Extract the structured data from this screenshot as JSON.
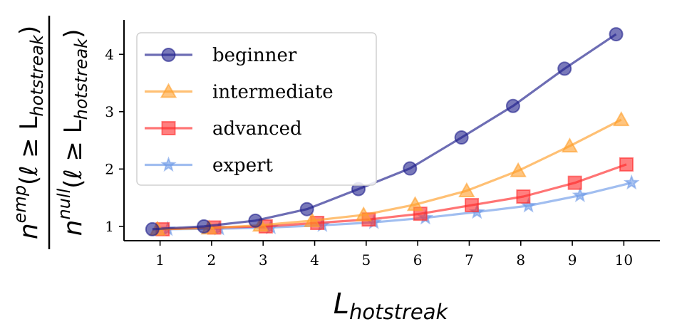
{
  "chart_data": {
    "type": "line",
    "x": [
      1,
      2,
      3,
      4,
      5,
      6,
      7,
      8,
      9,
      10
    ],
    "xlim": [
      0.3,
      10.7
    ],
    "ylim": [
      0.75,
      4.55
    ],
    "xticks": [
      1,
      2,
      3,
      4,
      5,
      6,
      7,
      8,
      9,
      10
    ],
    "yticks": [
      1,
      2,
      3,
      4
    ],
    "xlabel": {
      "base": "L",
      "sub": "hotstreak"
    },
    "ylabel": {
      "numerator": {
        "base": "n",
        "sup": "emp",
        "arg": "(ℓ ≥ L",
        "sub": "hotstreak",
        "close": ")"
      },
      "denominator": {
        "base": "n",
        "sup": "null",
        "arg": "(ℓ ≥ L",
        "sub": "hotstreak",
        "close": ")"
      }
    },
    "grid": false,
    "legend_position": "top-left",
    "series": [
      {
        "name": "beginner",
        "color": "#1f1f8c",
        "marker": "circle",
        "x_offset": -0.15,
        "values": [
          0.95,
          1.0,
          1.1,
          1.3,
          1.65,
          2.01,
          2.55,
          3.1,
          3.75,
          4.35
        ]
      },
      {
        "name": "intermediate",
        "color": "#ff9e2a",
        "marker": "triangle",
        "x_offset": -0.05,
        "values": [
          0.95,
          0.97,
          1.02,
          1.1,
          1.2,
          1.38,
          1.62,
          1.97,
          2.4,
          2.86
        ]
      },
      {
        "name": "advanced",
        "color": "#ff2a2a",
        "marker": "square",
        "x_offset": 0.05,
        "values": [
          0.95,
          0.98,
          1.0,
          1.06,
          1.12,
          1.22,
          1.37,
          1.52,
          1.76,
          2.08
        ]
      },
      {
        "name": "expert",
        "color": "#6f9be8",
        "marker": "star",
        "x_offset": 0.15,
        "values": [
          0.95,
          0.96,
          0.98,
          1.02,
          1.07,
          1.15,
          1.25,
          1.36,
          1.54,
          1.76
        ]
      }
    ]
  }
}
